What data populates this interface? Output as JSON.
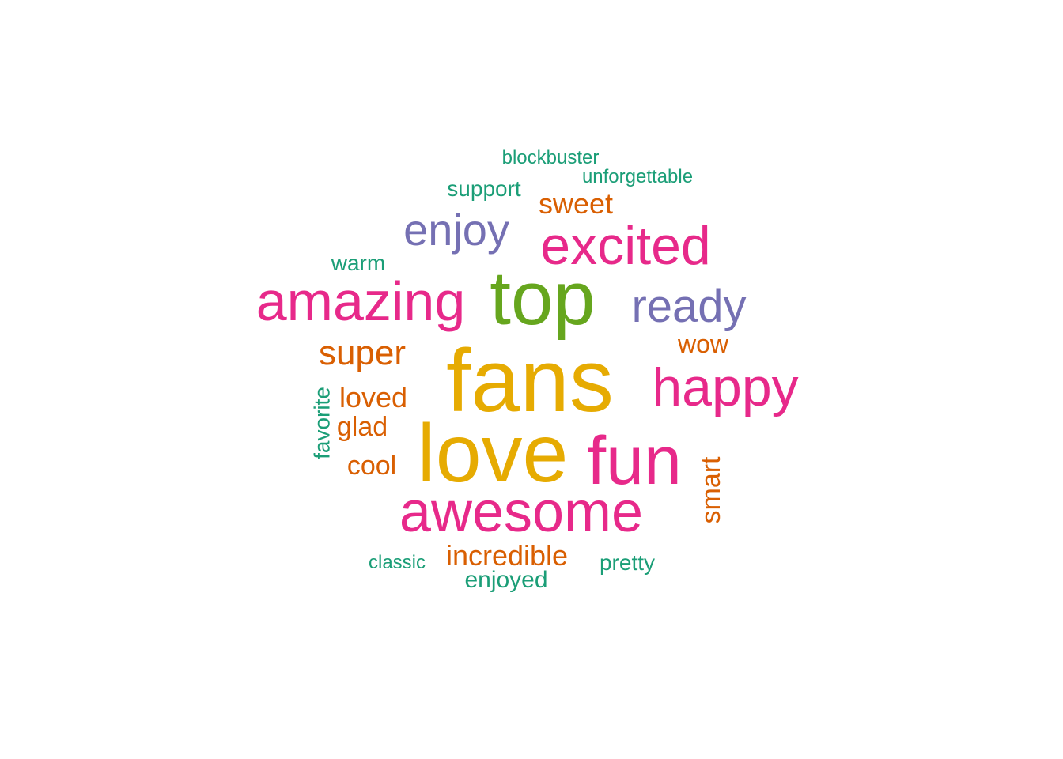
{
  "chart_data": {
    "type": "wordcloud",
    "palette": {
      "teal": "#1b9e77",
      "orange": "#d95f02",
      "purple": "#7570b3",
      "pink": "#e7298a",
      "green": "#66a61e",
      "gold": "#e6ab02"
    },
    "words": [
      {
        "text": "fans",
        "weight": 10,
        "color": "gold",
        "rotated": false
      },
      {
        "text": "love",
        "weight": 9,
        "color": "gold",
        "rotated": false
      },
      {
        "text": "top",
        "weight": 8,
        "color": "green",
        "rotated": false
      },
      {
        "text": "awesome",
        "weight": 7,
        "color": "pink",
        "rotated": false
      },
      {
        "text": "fun",
        "weight": 7,
        "color": "pink",
        "rotated": false
      },
      {
        "text": "amazing",
        "weight": 7,
        "color": "pink",
        "rotated": false
      },
      {
        "text": "happy",
        "weight": 6,
        "color": "pink",
        "rotated": false
      },
      {
        "text": "excited",
        "weight": 6,
        "color": "pink",
        "rotated": false
      },
      {
        "text": "ready",
        "weight": 5,
        "color": "purple",
        "rotated": false
      },
      {
        "text": "enjoy",
        "weight": 5,
        "color": "purple",
        "rotated": false
      },
      {
        "text": "super",
        "weight": 4,
        "color": "orange",
        "rotated": false
      },
      {
        "text": "sweet",
        "weight": 3,
        "color": "orange",
        "rotated": false
      },
      {
        "text": "loved",
        "weight": 3,
        "color": "orange",
        "rotated": false
      },
      {
        "text": "incredible",
        "weight": 3,
        "color": "orange",
        "rotated": false
      },
      {
        "text": "glad",
        "weight": 3,
        "color": "orange",
        "rotated": false
      },
      {
        "text": "cool",
        "weight": 3,
        "color": "orange",
        "rotated": false
      },
      {
        "text": "smart",
        "weight": 3,
        "color": "orange",
        "rotated": true
      },
      {
        "text": "wow",
        "weight": 3,
        "color": "orange",
        "rotated": false
      },
      {
        "text": "enjoyed",
        "weight": 2,
        "color": "teal",
        "rotated": false
      },
      {
        "text": "support",
        "weight": 2,
        "color": "teal",
        "rotated": false
      },
      {
        "text": "pretty",
        "weight": 2,
        "color": "teal",
        "rotated": false
      },
      {
        "text": "favorite",
        "weight": 2,
        "color": "teal",
        "rotated": true
      },
      {
        "text": "warm",
        "weight": 2,
        "color": "teal",
        "rotated": false
      },
      {
        "text": "blockbuster",
        "weight": 1,
        "color": "teal",
        "rotated": false
      },
      {
        "text": "unforgettable",
        "weight": 1,
        "color": "teal",
        "rotated": false
      },
      {
        "text": "classic",
        "weight": 1,
        "color": "teal",
        "rotated": false
      }
    ]
  }
}
